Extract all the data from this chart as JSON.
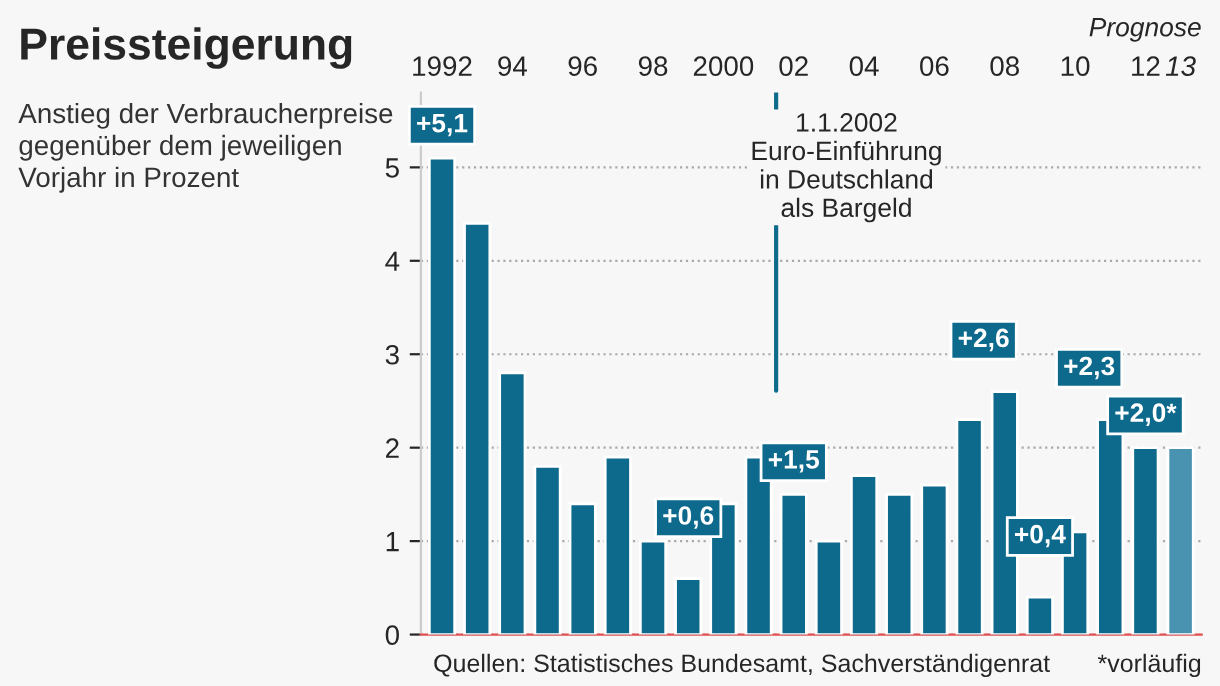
{
  "chart_data": {
    "type": "bar",
    "title": "Preissteigerung",
    "subtitle": "Anstieg der Verbraucherpreise\ngegenüber dem jeweiligen\nVorjahr in Prozent",
    "categories": [
      "1992",
      null,
      "94",
      null,
      "96",
      null,
      "98",
      null,
      "2000",
      null,
      "02",
      null,
      "04",
      null,
      "06",
      null,
      "08",
      null,
      "10",
      null,
      "12",
      "13"
    ],
    "values": [
      5.1,
      4.4,
      2.8,
      1.8,
      1.4,
      1.9,
      1.0,
      0.6,
      1.4,
      1.9,
      1.5,
      1.0,
      1.7,
      1.5,
      1.6,
      2.3,
      2.6,
      0.4,
      1.1,
      2.3,
      2.0,
      2.0
    ],
    "colors": [
      "#0e6a8c",
      "#0e6a8c",
      "#0e6a8c",
      "#0e6a8c",
      "#0e6a8c",
      "#0e6a8c",
      "#0e6a8c",
      "#0e6a8c",
      "#0e6a8c",
      "#0e6a8c",
      "#0e6a8c",
      "#0e6a8c",
      "#0e6a8c",
      "#0e6a8c",
      "#0e6a8c",
      "#0e6a8c",
      "#0e6a8c",
      "#0e6a8c",
      "#0e6a8c",
      "#0e6a8c",
      "#0e6a8c",
      "#4a93b0"
    ],
    "value_labels": [
      "+5,1",
      null,
      null,
      null,
      null,
      null,
      null,
      "+0,6",
      null,
      null,
      "+1,5",
      null,
      null,
      null,
      null,
      null,
      "+2,6",
      "+0,4",
      null,
      "+2,3",
      "+2,0*",
      null
    ],
    "ylim": [
      0,
      5.8
    ],
    "yticks": [
      0,
      1,
      2,
      3,
      4,
      5
    ],
    "grid": "y",
    "ref_lines": [
      {
        "axis": "x",
        "value": "02",
        "label": "1.1.2002\nEuro-Einführung\nin Deutschland\nals Bargeld",
        "color": "#0e6a8c"
      }
    ],
    "annotations": [
      "Quellen: Statistisches Bundesamt, Sachverständigenrat",
      "*vorläufig",
      "Prognose"
    ]
  }
}
